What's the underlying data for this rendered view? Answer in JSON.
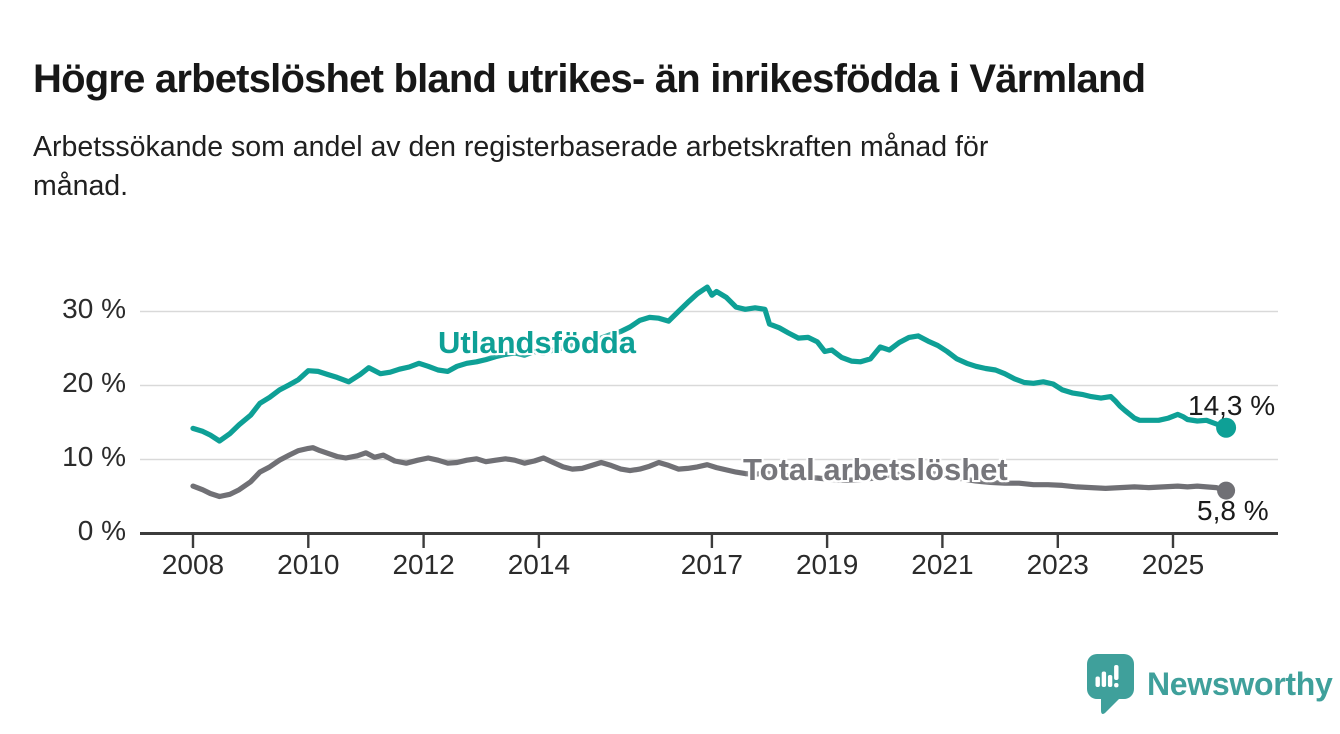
{
  "header": {
    "title": "Högre arbetslöshet bland utrikes- än inrikesfödda i Värmland",
    "subtitle_lines": [
      "Arbetssökande som andel av den registerbaserade arbetskraften månad för",
      "månad."
    ]
  },
  "branding": {
    "name": "Newsworthy",
    "color": "#3fa09b",
    "icon": "newsworthy-speech-bubble-bar-chart-icon"
  },
  "chart_data": {
    "type": "line",
    "unit": "%",
    "x_domain": [
      2008,
      2026
    ],
    "ylim": [
      0,
      35
    ],
    "grid": "horizontal",
    "grid_color": "#d9d9d9",
    "axis_color": "#3c3c3c",
    "tick_text_color": "#2b2b2b",
    "y_ticks": [
      {
        "value": 0,
        "label": "0 %"
      },
      {
        "value": 10,
        "label": "10 %"
      },
      {
        "value": 20,
        "label": "20 %"
      },
      {
        "value": 30,
        "label": "30 %"
      }
    ],
    "x_ticks": [
      {
        "year": 2008,
        "label": "2008"
      },
      {
        "year": 2010,
        "label": "2010"
      },
      {
        "year": 2012,
        "label": "2012"
      },
      {
        "year": 2014,
        "label": "2014"
      },
      {
        "year": 2017,
        "label": "2017"
      },
      {
        "year": 2019,
        "label": "2019"
      },
      {
        "year": 2021,
        "label": "2021"
      },
      {
        "year": 2023,
        "label": "2023"
      },
      {
        "year": 2025,
        "label": "2025"
      }
    ],
    "series": [
      {
        "name": "Utlandsfödda",
        "color": "#0ea096",
        "end_label": "14,3 %",
        "end_value": 14.3,
        "points": [
          [
            2008.0,
            14.2
          ],
          [
            2008.17,
            13.8
          ],
          [
            2008.3,
            13.3
          ],
          [
            2008.46,
            12.5
          ],
          [
            2008.64,
            13.5
          ],
          [
            2008.8,
            14.7
          ],
          [
            2009.0,
            16.0
          ],
          [
            2009.16,
            17.6
          ],
          [
            2009.33,
            18.4
          ],
          [
            2009.5,
            19.4
          ],
          [
            2009.67,
            20.1
          ],
          [
            2009.83,
            20.8
          ],
          [
            2010.0,
            22.0
          ],
          [
            2010.17,
            21.9
          ],
          [
            2010.33,
            21.5
          ],
          [
            2010.5,
            21.1
          ],
          [
            2010.7,
            20.5
          ],
          [
            2010.9,
            21.5
          ],
          [
            2011.05,
            22.4
          ],
          [
            2011.25,
            21.6
          ],
          [
            2011.42,
            21.8
          ],
          [
            2011.58,
            22.2
          ],
          [
            2011.75,
            22.5
          ],
          [
            2011.92,
            23.0
          ],
          [
            2012.08,
            22.6
          ],
          [
            2012.25,
            22.1
          ],
          [
            2012.42,
            21.9
          ],
          [
            2012.58,
            22.6
          ],
          [
            2012.75,
            23.0
          ],
          [
            2012.92,
            23.2
          ],
          [
            2013.08,
            23.5
          ],
          [
            2013.25,
            23.9
          ],
          [
            2013.42,
            24.2
          ],
          [
            2013.58,
            24.4
          ],
          [
            2013.75,
            24.1
          ],
          [
            2013.92,
            24.6
          ],
          [
            2014.08,
            24.4
          ],
          [
            2014.25,
            24.8
          ],
          [
            2014.42,
            25.1
          ],
          [
            2014.58,
            25.4
          ],
          [
            2014.75,
            25.7
          ],
          [
            2014.92,
            26.1
          ],
          [
            2015.08,
            26.4
          ],
          [
            2015.25,
            26.9
          ],
          [
            2015.42,
            27.3
          ],
          [
            2015.58,
            27.9
          ],
          [
            2015.75,
            28.8
          ],
          [
            2015.92,
            29.2
          ],
          [
            2016.08,
            29.1
          ],
          [
            2016.25,
            28.7
          ],
          [
            2016.42,
            30.0
          ],
          [
            2016.58,
            31.2
          ],
          [
            2016.75,
            32.4
          ],
          [
            2016.92,
            33.3
          ],
          [
            2017.0,
            32.2
          ],
          [
            2017.08,
            32.7
          ],
          [
            2017.25,
            31.9
          ],
          [
            2017.42,
            30.6
          ],
          [
            2017.58,
            30.3
          ],
          [
            2017.75,
            30.5
          ],
          [
            2017.92,
            30.3
          ],
          [
            2018.0,
            28.3
          ],
          [
            2018.17,
            27.8
          ],
          [
            2018.33,
            27.1
          ],
          [
            2018.5,
            26.4
          ],
          [
            2018.67,
            26.5
          ],
          [
            2018.83,
            25.9
          ],
          [
            2018.96,
            24.6
          ],
          [
            2019.08,
            24.8
          ],
          [
            2019.25,
            23.8
          ],
          [
            2019.42,
            23.3
          ],
          [
            2019.58,
            23.2
          ],
          [
            2019.75,
            23.6
          ],
          [
            2019.92,
            25.2
          ],
          [
            2020.08,
            24.8
          ],
          [
            2020.25,
            25.8
          ],
          [
            2020.42,
            26.5
          ],
          [
            2020.58,
            26.7
          ],
          [
            2020.75,
            26.0
          ],
          [
            2020.92,
            25.4
          ],
          [
            2021.08,
            24.6
          ],
          [
            2021.25,
            23.6
          ],
          [
            2021.42,
            23.0
          ],
          [
            2021.58,
            22.6
          ],
          [
            2021.75,
            22.3
          ],
          [
            2021.92,
            22.1
          ],
          [
            2022.08,
            21.6
          ],
          [
            2022.25,
            20.9
          ],
          [
            2022.42,
            20.4
          ],
          [
            2022.58,
            20.3
          ],
          [
            2022.75,
            20.5
          ],
          [
            2022.92,
            20.2
          ],
          [
            2023.08,
            19.4
          ],
          [
            2023.25,
            19.0
          ],
          [
            2023.42,
            18.8
          ],
          [
            2023.58,
            18.5
          ],
          [
            2023.75,
            18.3
          ],
          [
            2023.92,
            18.5
          ],
          [
            2024.0,
            17.9
          ],
          [
            2024.08,
            17.2
          ],
          [
            2024.17,
            16.6
          ],
          [
            2024.25,
            16.1
          ],
          [
            2024.33,
            15.6
          ],
          [
            2024.42,
            15.3
          ],
          [
            2024.58,
            15.3
          ],
          [
            2024.75,
            15.3
          ],
          [
            2024.92,
            15.6
          ],
          [
            2025.08,
            16.1
          ],
          [
            2025.17,
            15.8
          ],
          [
            2025.25,
            15.4
          ],
          [
            2025.42,
            15.2
          ],
          [
            2025.58,
            15.3
          ],
          [
            2025.75,
            14.8
          ],
          [
            2025.92,
            14.3
          ]
        ]
      },
      {
        "name": "Total arbetslöshet",
        "color": "#707075",
        "end_label": "5,8 %",
        "end_value": 5.8,
        "points": [
          [
            2008.0,
            6.4
          ],
          [
            2008.17,
            5.9
          ],
          [
            2008.3,
            5.4
          ],
          [
            2008.46,
            5.0
          ],
          [
            2008.64,
            5.3
          ],
          [
            2008.8,
            5.9
          ],
          [
            2009.0,
            7.0
          ],
          [
            2009.16,
            8.3
          ],
          [
            2009.33,
            9.0
          ],
          [
            2009.5,
            9.9
          ],
          [
            2009.67,
            10.6
          ],
          [
            2009.83,
            11.2
          ],
          [
            2010.0,
            11.5
          ],
          [
            2010.08,
            11.6
          ],
          [
            2010.2,
            11.2
          ],
          [
            2010.35,
            10.8
          ],
          [
            2010.5,
            10.4
          ],
          [
            2010.65,
            10.2
          ],
          [
            2010.85,
            10.5
          ],
          [
            2011.0,
            10.9
          ],
          [
            2011.15,
            10.3
          ],
          [
            2011.3,
            10.6
          ],
          [
            2011.5,
            9.8
          ],
          [
            2011.7,
            9.5
          ],
          [
            2011.9,
            9.9
          ],
          [
            2012.08,
            10.2
          ],
          [
            2012.25,
            9.9
          ],
          [
            2012.42,
            9.5
          ],
          [
            2012.58,
            9.6
          ],
          [
            2012.75,
            9.9
          ],
          [
            2012.92,
            10.1
          ],
          [
            2013.08,
            9.7
          ],
          [
            2013.25,
            9.9
          ],
          [
            2013.42,
            10.1
          ],
          [
            2013.58,
            9.9
          ],
          [
            2013.75,
            9.5
          ],
          [
            2013.92,
            9.8
          ],
          [
            2014.08,
            10.2
          ],
          [
            2014.25,
            9.6
          ],
          [
            2014.42,
            9.0
          ],
          [
            2014.58,
            8.7
          ],
          [
            2014.75,
            8.8
          ],
          [
            2014.92,
            9.2
          ],
          [
            2015.08,
            9.6
          ],
          [
            2015.25,
            9.2
          ],
          [
            2015.42,
            8.7
          ],
          [
            2015.58,
            8.5
          ],
          [
            2015.75,
            8.7
          ],
          [
            2015.92,
            9.1
          ],
          [
            2016.08,
            9.6
          ],
          [
            2016.25,
            9.2
          ],
          [
            2016.42,
            8.7
          ],
          [
            2016.58,
            8.8
          ],
          [
            2016.75,
            9.0
          ],
          [
            2016.92,
            9.3
          ],
          [
            2017.08,
            8.9
          ],
          [
            2017.25,
            8.6
          ],
          [
            2017.42,
            8.3
          ],
          [
            2017.58,
            8.1
          ],
          [
            2017.75,
            8.0
          ],
          [
            2017.92,
            8.2
          ],
          [
            2018.08,
            8.0
          ],
          [
            2018.33,
            7.8
          ],
          [
            2018.58,
            7.6
          ],
          [
            2018.83,
            7.5
          ],
          [
            2019.08,
            7.3
          ],
          [
            2019.33,
            7.2
          ],
          [
            2019.58,
            7.3
          ],
          [
            2019.83,
            7.5
          ],
          [
            2020.08,
            7.8
          ],
          [
            2020.33,
            8.1
          ],
          [
            2020.58,
            8.3
          ],
          [
            2020.83,
            8.1
          ],
          [
            2021.08,
            7.8
          ],
          [
            2021.33,
            7.4
          ],
          [
            2021.58,
            7.1
          ],
          [
            2021.83,
            6.9
          ],
          [
            2022.08,
            6.8
          ],
          [
            2022.33,
            6.8
          ],
          [
            2022.58,
            6.6
          ],
          [
            2022.83,
            6.6
          ],
          [
            2023.08,
            6.5
          ],
          [
            2023.33,
            6.3
          ],
          [
            2023.58,
            6.2
          ],
          [
            2023.83,
            6.1
          ],
          [
            2024.08,
            6.2
          ],
          [
            2024.33,
            6.3
          ],
          [
            2024.58,
            6.2
          ],
          [
            2024.83,
            6.3
          ],
          [
            2025.08,
            6.4
          ],
          [
            2025.25,
            6.3
          ],
          [
            2025.42,
            6.4
          ],
          [
            2025.58,
            6.3
          ],
          [
            2025.75,
            6.2
          ],
          [
            2025.92,
            5.8
          ]
        ]
      }
    ]
  }
}
